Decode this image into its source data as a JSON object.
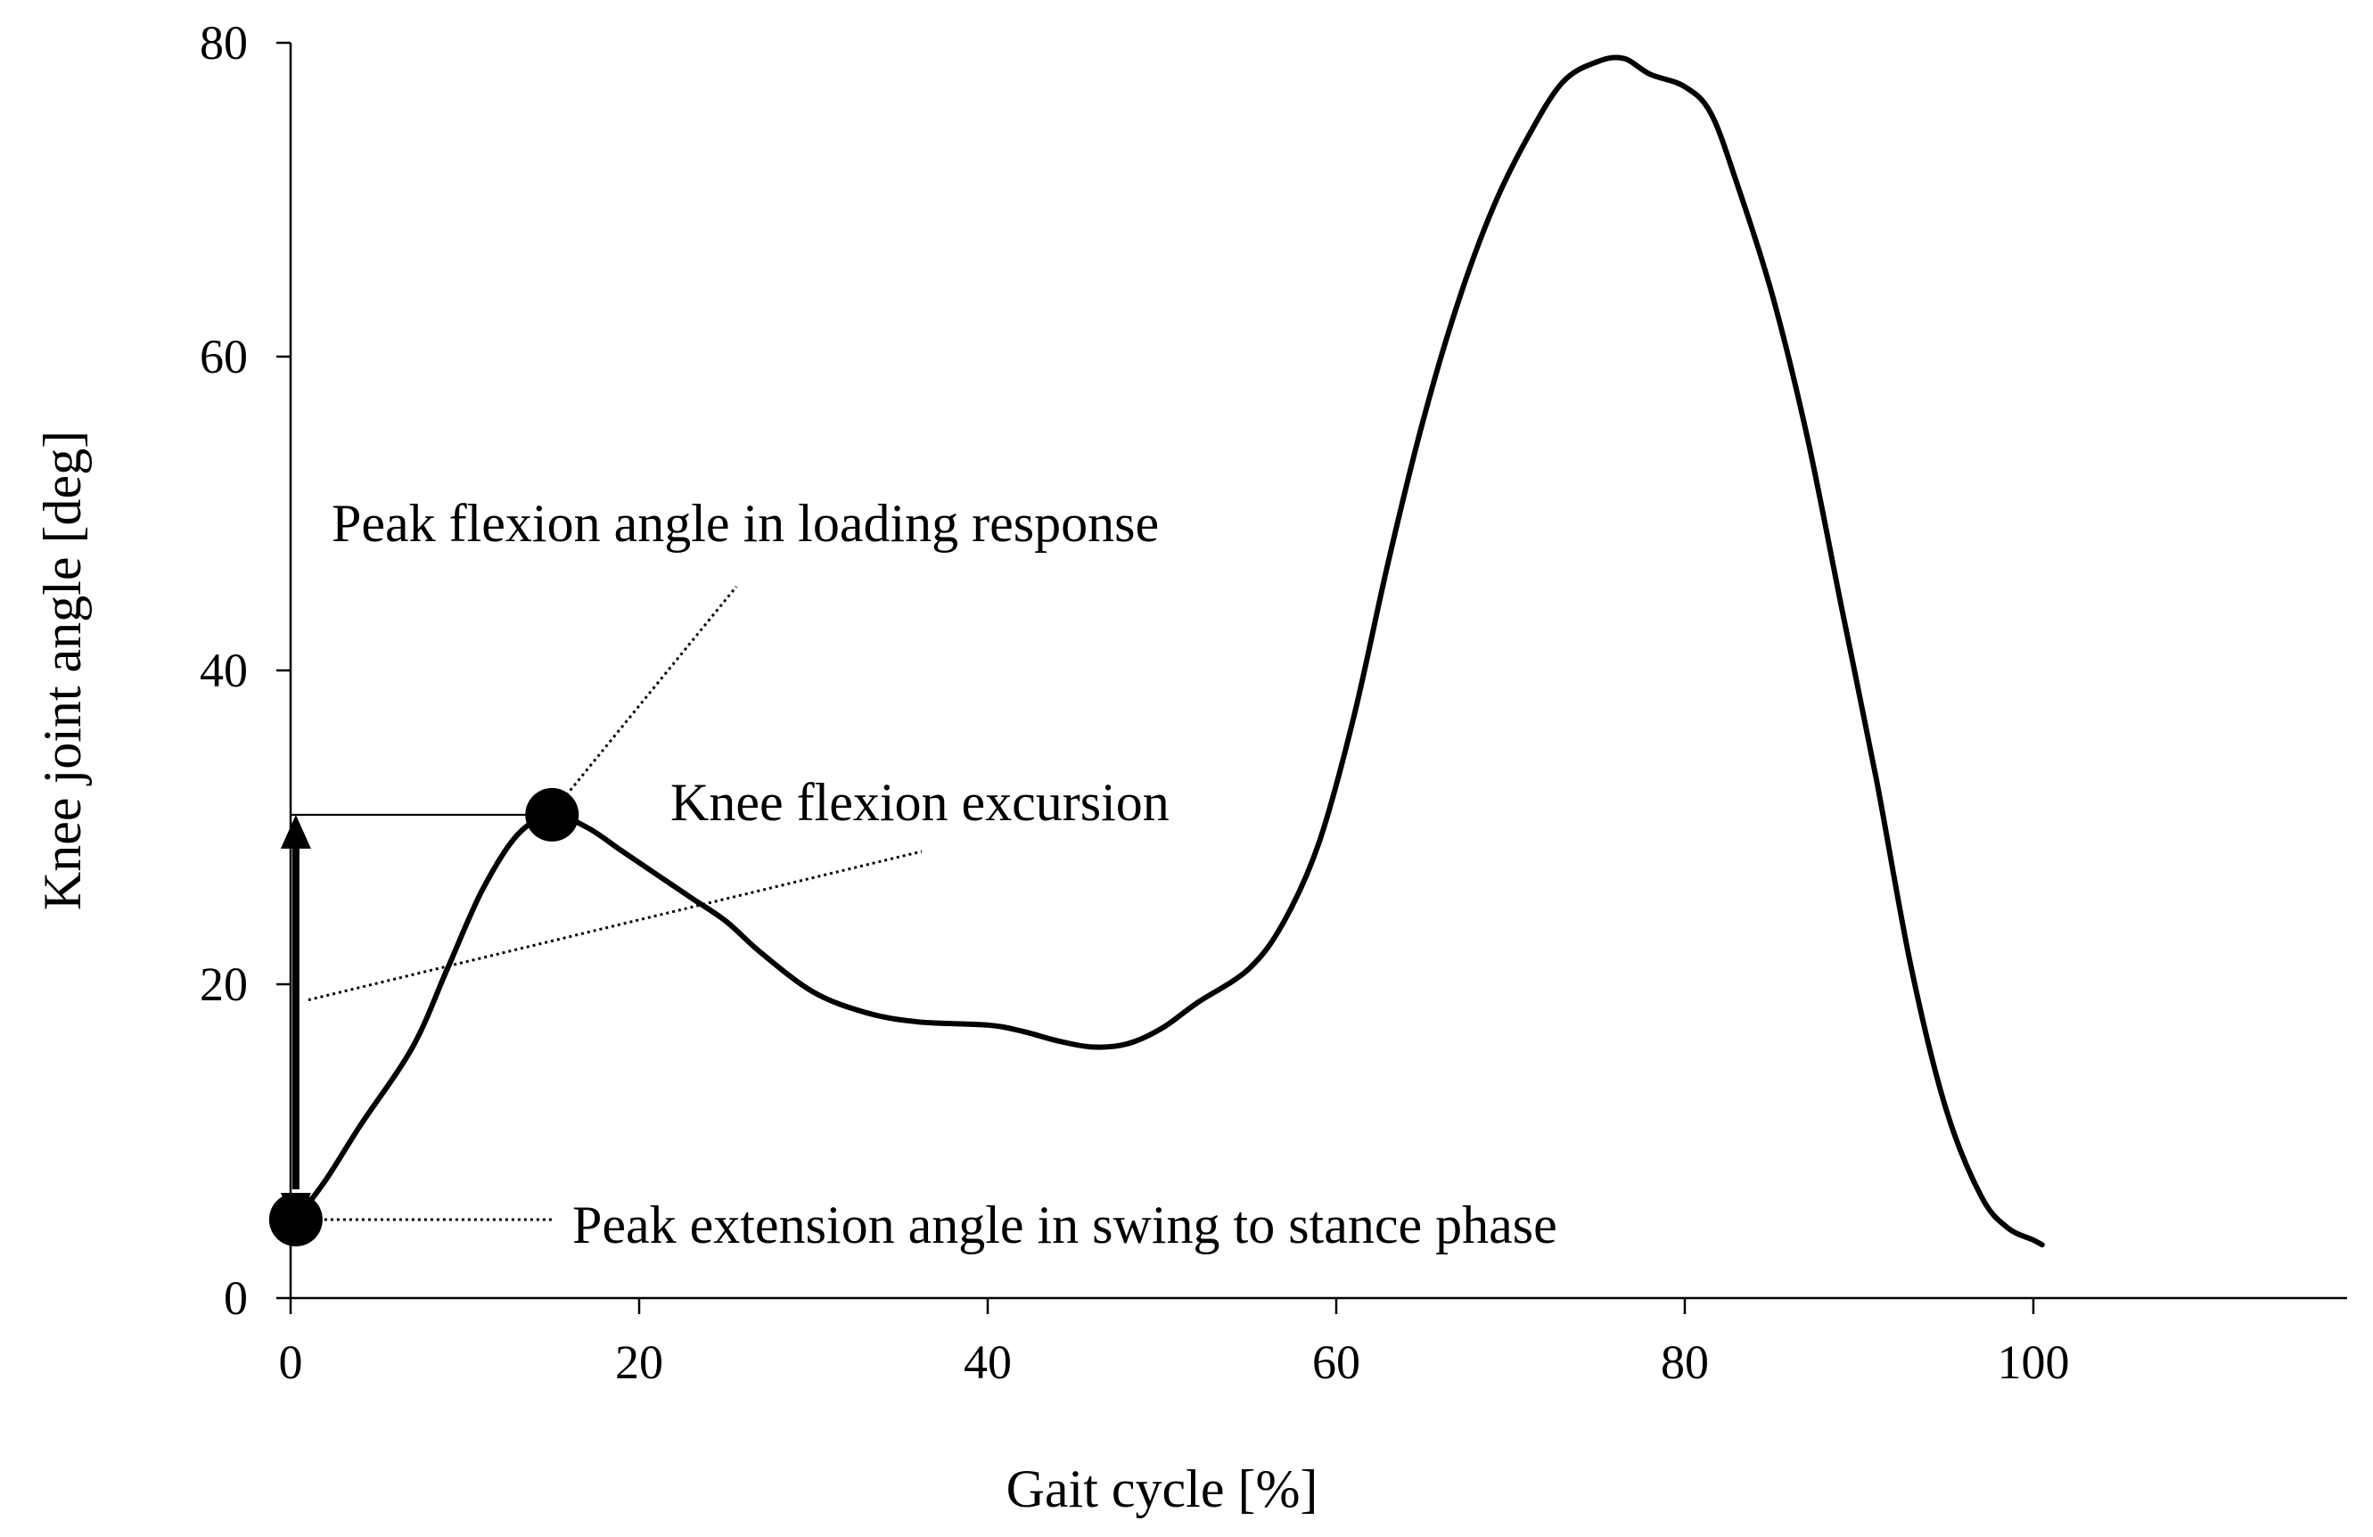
{
  "chart_data": {
    "type": "line",
    "title": "",
    "xlabel": "Gait cycle [%]",
    "ylabel": "Knee joint angle [deg]",
    "xlim": [
      0,
      118
    ],
    "ylim": [
      0,
      80
    ],
    "x_ticks": [
      0,
      20,
      40,
      60,
      80,
      100
    ],
    "y_ticks": [
      0,
      20,
      40,
      60,
      80
    ],
    "grid": false,
    "series": [
      {
        "name": "Knee joint angle",
        "color": "#000000",
        "x": [
          0.3,
          2,
          4,
          7,
          9,
          11,
          13,
          15,
          17,
          19,
          21,
          23,
          25,
          27,
          30,
          33,
          36,
          40,
          42,
          44,
          46,
          48,
          50,
          52,
          55,
          57,
          59,
          61,
          63,
          65,
          67,
          69,
          71,
          73,
          75,
          76.5,
          78,
          80,
          81.5,
          83,
          85,
          87,
          89,
          91,
          93,
          95,
          97,
          98.5,
          100,
          100.5
        ],
        "y": [
          5.0,
          7.5,
          11.0,
          16.0,
          21.0,
          26.0,
          29.5,
          30.8,
          30.0,
          28.5,
          27.0,
          25.5,
          24.0,
          22.0,
          19.5,
          18.2,
          17.6,
          17.4,
          17.0,
          16.4,
          16.0,
          16.2,
          17.2,
          18.8,
          21.0,
          24.0,
          29.0,
          37.0,
          47.0,
          56.0,
          63.5,
          69.5,
          74.0,
          77.5,
          78.8,
          79.0,
          78.0,
          77.2,
          75.5,
          71.0,
          64.0,
          55.0,
          44.0,
          33.0,
          21.0,
          12.0,
          6.5,
          4.5,
          3.7,
          3.4
        ]
      }
    ],
    "markers": [
      {
        "name": "peak-extension",
        "x": 0.3,
        "y": 5.0
      },
      {
        "name": "peak-flexion",
        "x": 15,
        "y": 30.8
      }
    ],
    "reference_line": {
      "y": 30.8,
      "x_from": 0,
      "x_to": 15
    },
    "excursion_arrow": {
      "x": 0.3,
      "y_from": 5.0,
      "y_to": 30.8
    },
    "annotations": [
      {
        "name": "peak-flexion-label",
        "text": "Peak flexion angle in loading response",
        "points_to": {
          "x": 15,
          "y": 30.8
        }
      },
      {
        "name": "excursion-label",
        "text": "Knee flexion excursion",
        "points_to": {
          "x": 0.3,
          "y": 19.0
        }
      },
      {
        "name": "peak-extension-label",
        "text": "Peak extension angle in swing to stance phase",
        "points_to": {
          "x": 0.3,
          "y": 5.0
        }
      }
    ]
  }
}
